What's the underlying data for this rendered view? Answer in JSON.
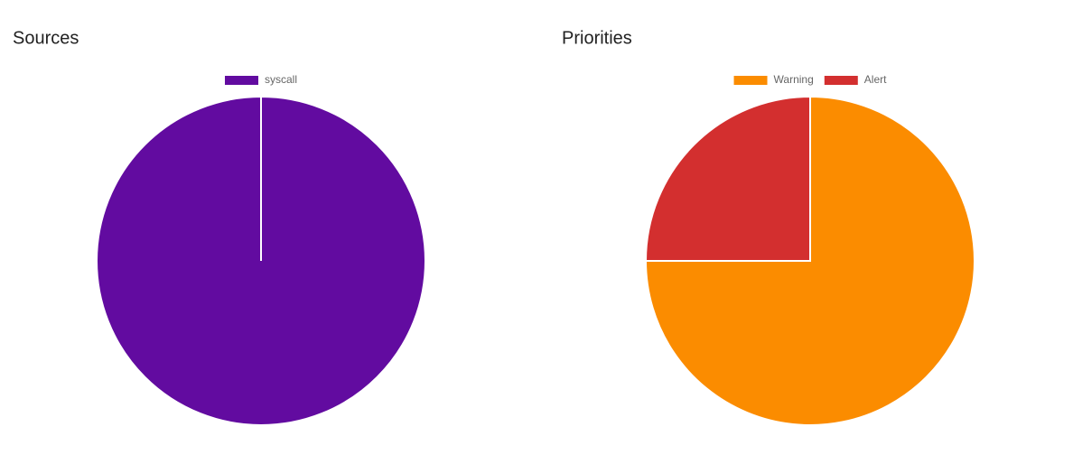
{
  "chart_data": [
    {
      "type": "pie",
      "title": "Sources",
      "categories": [
        "syscall"
      ],
      "values": [
        100
      ],
      "colors": [
        "#620ba0"
      ]
    },
    {
      "type": "pie",
      "title": "Priorities",
      "categories": [
        "Warning",
        "Alert"
      ],
      "values": [
        75,
        25
      ],
      "colors": [
        "#fb8c00",
        "#d32f2f"
      ]
    }
  ]
}
